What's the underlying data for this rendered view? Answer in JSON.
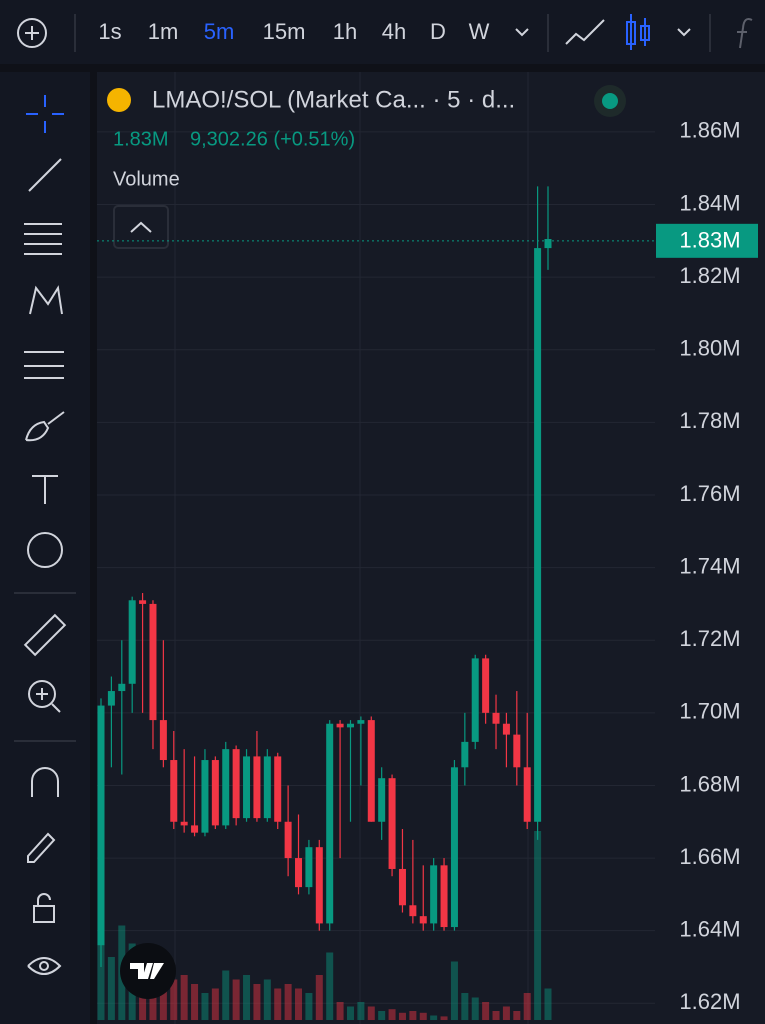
{
  "toolbar": {
    "intervals": [
      "1s",
      "1m",
      "5m",
      "15m",
      "1h",
      "4h",
      "D",
      "W"
    ],
    "active": 2
  },
  "chart_data": {
    "type": "candlestick",
    "title": "LMAO!/SOL (Market Ca... · 5 · d...",
    "last_value": 1.83,
    "last_value_label": "1.83M",
    "change": "9,302.26 (+0.51%)",
    "volume_label": "Volume",
    "up_color": "#089981",
    "down_color": "#f23645",
    "grid": true,
    "ylim": [
      1.6143,
      1.8776
    ],
    "yticks": [
      {
        "value": 1.62,
        "label": "1.62M"
      },
      {
        "value": 1.64,
        "label": "1.64M"
      },
      {
        "value": 1.66,
        "label": "1.66M"
      },
      {
        "value": 1.68,
        "label": "1.68M"
      },
      {
        "value": 1.7,
        "label": "1.70M"
      },
      {
        "value": 1.72,
        "label": "1.72M"
      },
      {
        "value": 1.74,
        "label": "1.74M"
      },
      {
        "value": 1.76,
        "label": "1.76M"
      },
      {
        "value": 1.78,
        "label": "1.78M"
      },
      {
        "value": 1.8,
        "label": "1.80M"
      },
      {
        "value": 1.82,
        "label": "1.82M"
      },
      {
        "value": 1.84,
        "label": "1.84M"
      },
      {
        "value": 1.86,
        "label": "1.86M"
      }
    ],
    "open": [
      1.636,
      1.702,
      1.706,
      1.708,
      1.731,
      1.73,
      1.698,
      1.687,
      1.67,
      1.669,
      1.667,
      1.687,
      1.669,
      1.69,
      1.671,
      1.688,
      1.671,
      1.688,
      1.67,
      1.66,
      1.652,
      1.663,
      1.642,
      1.697,
      1.696,
      1.697,
      1.698,
      1.67,
      1.682,
      1.657,
      1.647,
      1.644,
      1.642,
      1.658,
      1.641,
      1.685,
      1.692,
      1.715,
      1.7,
      1.697,
      1.694,
      1.685,
      1.67,
      1.828
    ],
    "high": [
      1.704,
      1.71,
      1.72,
      1.732,
      1.733,
      1.731,
      1.72,
      1.695,
      1.69,
      1.688,
      1.69,
      1.688,
      1.692,
      1.691,
      1.69,
      1.695,
      1.69,
      1.689,
      1.68,
      1.672,
      1.665,
      1.665,
      1.698,
      1.698,
      1.698,
      1.699,
      1.699,
      1.685,
      1.683,
      1.668,
      1.665,
      1.658,
      1.66,
      1.66,
      1.687,
      1.7,
      1.716,
      1.716,
      1.705,
      1.7,
      1.706,
      1.7,
      1.845,
      1.845
    ],
    "low": [
      1.63,
      1.685,
      1.683,
      1.7,
      1.7,
      1.69,
      1.685,
      1.668,
      1.667,
      1.666,
      1.666,
      1.668,
      1.668,
      1.669,
      1.67,
      1.67,
      1.67,
      1.668,
      1.655,
      1.65,
      1.65,
      1.64,
      1.64,
      1.66,
      1.67,
      1.68,
      1.67,
      1.665,
      1.655,
      1.645,
      1.642,
      1.64,
      1.64,
      1.64,
      1.64,
      1.68,
      1.69,
      1.697,
      1.69,
      1.685,
      1.68,
      1.668,
      1.665,
      1.822
    ],
    "close": [
      1.702,
      1.706,
      1.708,
      1.731,
      1.73,
      1.698,
      1.687,
      1.67,
      1.669,
      1.667,
      1.687,
      1.669,
      1.69,
      1.671,
      1.688,
      1.671,
      1.688,
      1.67,
      1.66,
      1.652,
      1.663,
      1.642,
      1.697,
      1.696,
      1.697,
      1.698,
      1.67,
      1.682,
      1.657,
      1.647,
      1.644,
      1.642,
      1.658,
      1.641,
      1.685,
      1.692,
      1.715,
      1.7,
      1.697,
      1.694,
      1.685,
      1.67,
      1.828,
      1.8305
    ],
    "volume": [
      95,
      70,
      105,
      85,
      60,
      75,
      55,
      45,
      50,
      40,
      30,
      35,
      55,
      45,
      50,
      40,
      45,
      35,
      40,
      35,
      30,
      50,
      75,
      20,
      15,
      20,
      15,
      10,
      12,
      8,
      10,
      8,
      5,
      4,
      65,
      30,
      25,
      20,
      10,
      15,
      10,
      30,
      210,
      35
    ]
  }
}
